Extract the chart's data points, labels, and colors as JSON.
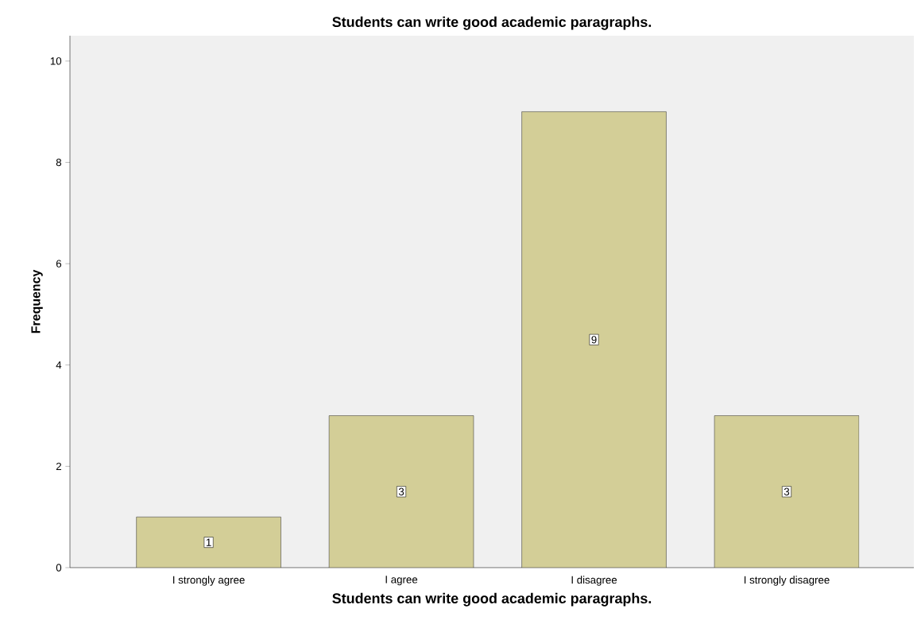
{
  "chart_data": {
    "type": "bar",
    "title": "Students can write good academic paragraphs.",
    "xlabel": "Students can write good academic paragraphs.",
    "ylabel": "Frequency",
    "categories": [
      "I strongly agree",
      "I agree",
      "I disagree",
      "I strongly disagree"
    ],
    "values": [
      1,
      3,
      9,
      3
    ],
    "color": "#d3ce97",
    "ylim": [
      0,
      10.5
    ],
    "yticks": [
      0,
      2,
      4,
      6,
      8,
      10
    ],
    "grid": false,
    "data_labels": true
  }
}
